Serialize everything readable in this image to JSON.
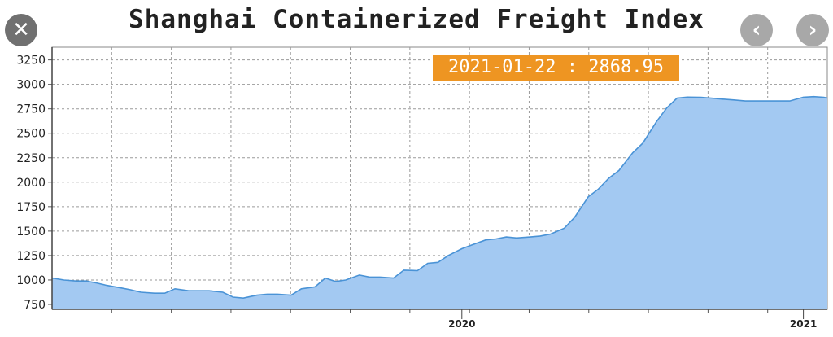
{
  "window": {
    "close_icon": "close-icon",
    "prev_icon": "chevron-left-icon",
    "next_icon": "chevron-right-icon"
  },
  "tooltip": {
    "text": "2021-01-22 : 2868.95"
  },
  "colors": {
    "fill": "#a3c9f2",
    "line": "#4a93d6",
    "grid": "#9a9a9a",
    "tooltip": "#ee9522"
  },
  "chart_data": {
    "type": "area",
    "title": "Shanghai Containerized Freight Index",
    "xlabel": "",
    "ylabel": "",
    "ylim": [
      700,
      3380
    ],
    "yticks": [
      750,
      1000,
      1250,
      1500,
      1750,
      2000,
      2250,
      2500,
      2750,
      3000,
      3250
    ],
    "xticks": [
      {
        "label": "2020",
        "x": 2020.0
      },
      {
        "label": "2021",
        "x": 2021.0
      }
    ],
    "x_range": [
      2018.8,
      2021.07
    ],
    "grid": true,
    "legend": "none",
    "series": [
      {
        "x": [
          2018.8,
          2018.835,
          2018.87,
          2018.9,
          2018.93,
          2018.96,
          2019.0,
          2019.03,
          2019.06,
          2019.1,
          2019.13,
          2019.16,
          2019.2,
          2019.23,
          2019.26,
          2019.3,
          2019.33,
          2019.36,
          2019.4,
          2019.43,
          2019.46,
          2019.5,
          2019.53,
          2019.57,
          2019.6,
          2019.63,
          2019.66,
          2019.7,
          2019.73,
          2019.76,
          2019.8,
          2019.83,
          2019.87,
          2019.9,
          2019.93,
          2019.96,
          2020.0,
          2020.03,
          2020.07,
          2020.1,
          2020.13,
          2020.16,
          2020.2,
          2020.23,
          2020.26,
          2020.3,
          2020.33,
          2020.37,
          2020.4,
          2020.43,
          2020.46,
          2020.5,
          2020.53,
          2020.57,
          2020.6,
          2020.63,
          2020.66,
          2020.7,
          2020.73,
          2020.76,
          2020.8,
          2020.83,
          2020.87,
          2020.9,
          2020.93,
          2020.96,
          2021.0,
          2021.03,
          2021.06,
          2021.07
        ],
        "values": [
          1020,
          1000,
          990,
          990,
          970,
          945,
          920,
          900,
          875,
          865,
          865,
          910,
          890,
          890,
          890,
          875,
          825,
          815,
          845,
          855,
          855,
          845,
          910,
          930,
          1020,
          985,
          1000,
          1050,
          1030,
          1030,
          1020,
          1100,
          1095,
          1170,
          1180,
          1250,
          1320,
          1360,
          1410,
          1420,
          1440,
          1430,
          1440,
          1450,
          1470,
          1530,
          1640,
          1850,
          1930,
          2040,
          2120,
          2300,
          2400,
          2620,
          2760,
          2860,
          2870,
          2868,
          2860,
          2850,
          2840,
          2830,
          2830,
          2830,
          2830,
          2830,
          2869,
          2875,
          2868,
          2860
        ]
      }
    ]
  }
}
